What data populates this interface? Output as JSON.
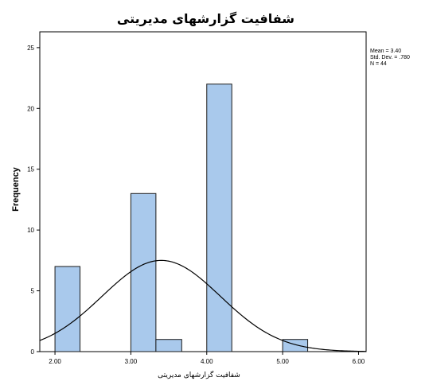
{
  "chart_data": {
    "type": "bar",
    "title": "شفافیت گزارشهای مدیریتی",
    "xlabel": "شفافیت گزارشهای مدیریتی",
    "ylabel": "Frequency",
    "xlim": [
      1.8,
      6.1
    ],
    "ylim": [
      0,
      26.3
    ],
    "x_ticks": [
      {
        "value": 2,
        "label": "2.00"
      },
      {
        "value": 3,
        "label": "3.00"
      },
      {
        "value": 4,
        "label": "4.00"
      },
      {
        "value": 5,
        "label": "5.00"
      },
      {
        "value": 6,
        "label": "6.00"
      }
    ],
    "y_ticks": [
      {
        "value": 0,
        "label": "0"
      },
      {
        "value": 5,
        "label": "5"
      },
      {
        "value": 10,
        "label": "10"
      },
      {
        "value": 15,
        "label": "15"
      },
      {
        "value": 20,
        "label": "20"
      },
      {
        "value": 25,
        "label": "25"
      }
    ],
    "bins": [
      {
        "x_start": 2.0,
        "x_end": 2.33,
        "frequency": 7
      },
      {
        "x_start": 3.0,
        "x_end": 3.33,
        "frequency": 13
      },
      {
        "x_start": 3.33,
        "x_end": 3.67,
        "frequency": 1
      },
      {
        "x_start": 4.0,
        "x_end": 4.33,
        "frequency": 22
      },
      {
        "x_start": 5.0,
        "x_end": 5.33,
        "frequency": 1
      }
    ],
    "normal_curve": {
      "mean": 3.4,
      "std_dev": 0.78,
      "n": 44,
      "bin_width": 0.3333
    },
    "statistics": {
      "mean": "Mean = 3.40",
      "std_dev": "Std. Dev. = .780",
      "n": "N = 44"
    },
    "grid": false,
    "bar_color": "#a9c9ec",
    "bar_edge_color": "#1a1a1a",
    "curve_color": "#000000"
  }
}
